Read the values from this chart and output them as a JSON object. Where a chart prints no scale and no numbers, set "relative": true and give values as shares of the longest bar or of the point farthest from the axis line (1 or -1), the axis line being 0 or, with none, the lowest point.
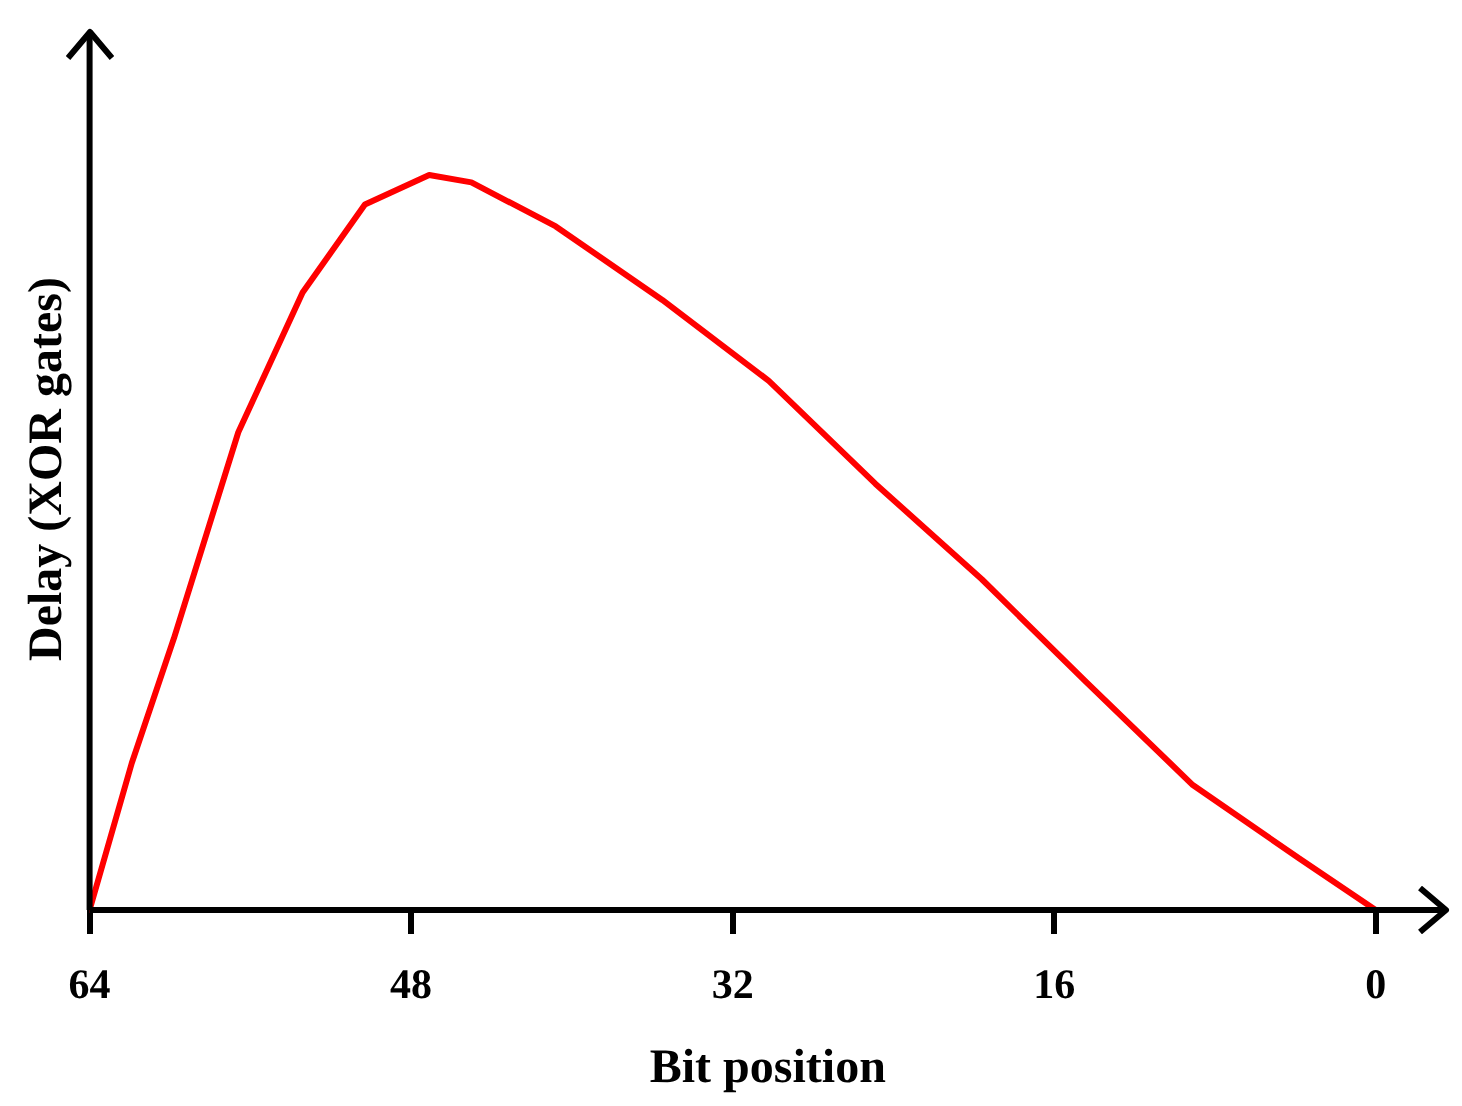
{
  "chart_data": {
    "type": "line",
    "xlabel": "Bit position",
    "ylabel": "Delay (XOR gates)",
    "relative": true,
    "xlim": [
      64,
      -3.5
    ],
    "xticks": [
      64,
      48,
      32,
      16,
      0
    ],
    "grid": false,
    "legend": false,
    "marker": "none",
    "line_style": "solid",
    "series": [
      {
        "color": "#ff0000",
        "x": [
          64,
          61.9,
          59.8,
          56.6,
          53.4,
          50.3,
          47.1,
          45.0,
          40.8,
          35.5,
          30.2,
          24.9,
          19.6,
          14.4,
          9.1,
          3.8,
          0
        ],
        "values": [
          0,
          0.2,
          0.37,
          0.65,
          0.84,
          0.96,
          1,
          0.99,
          0.93,
          0.83,
          0.72,
          0.58,
          0.45,
          0.31,
          0.17,
          0.07,
          0
        ]
      }
    ]
  }
}
